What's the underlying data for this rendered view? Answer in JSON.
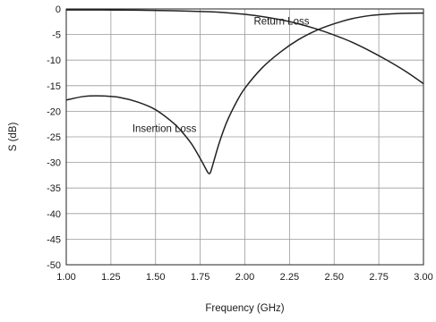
{
  "chart_data": {
    "type": "line",
    "title": "",
    "xlabel": "Frequency (GHz)",
    "ylabel": "S (dB)",
    "xlim": [
      1.0,
      3.0
    ],
    "ylim": [
      -50,
      0
    ],
    "x_ticks": [
      "1.00",
      "1.25",
      "1.50",
      "1.75",
      "2.00",
      "2.25",
      "2.50",
      "2.75",
      "3.00"
    ],
    "y_ticks": [
      "0",
      "-5",
      "-10",
      "-15",
      "-20",
      "-25",
      "-30",
      "-35",
      "-40",
      "-45",
      "-50"
    ],
    "grid": true,
    "legend": "none",
    "colors": {
      "line": "#222222",
      "grid": "#9a9a9a",
      "frame": "#222222"
    },
    "series": [
      {
        "annotation": "Insertion Loss",
        "x": [
          1.0,
          1.1,
          1.2,
          1.3,
          1.4,
          1.5,
          1.6,
          1.65,
          1.7,
          1.74,
          1.77,
          1.79,
          1.8,
          1.81,
          1.83,
          1.86,
          1.9,
          1.95,
          2.0,
          2.1,
          2.2,
          2.3,
          2.4,
          2.5,
          2.6,
          2.7,
          2.8,
          2.9,
          3.0
        ],
        "values": [
          -17.8,
          -17.1,
          -17.0,
          -17.3,
          -18.2,
          -19.7,
          -22.3,
          -24.1,
          -26.3,
          -28.6,
          -30.5,
          -31.8,
          -32.2,
          -31.7,
          -29.3,
          -25.8,
          -22.0,
          -18.4,
          -15.5,
          -11.4,
          -8.4,
          -6.0,
          -4.2,
          -2.9,
          -1.9,
          -1.3,
          -1.0,
          -0.85,
          -0.8
        ]
      },
      {
        "annotation": "Return Loss",
        "x": [
          1.0,
          1.2,
          1.4,
          1.6,
          1.8,
          1.9,
          2.0,
          2.1,
          2.2,
          2.3,
          2.4,
          2.5,
          2.6,
          2.7,
          2.8,
          2.9,
          3.0
        ],
        "values": [
          -0.2,
          -0.2,
          -0.25,
          -0.35,
          -0.55,
          -0.75,
          -1.05,
          -1.5,
          -2.1,
          -2.9,
          -3.9,
          -5.1,
          -6.5,
          -8.2,
          -10.1,
          -12.2,
          -14.6
        ]
      }
    ],
    "annotations": [
      {
        "text": "Return Loss",
        "x": 2.05,
        "y": -2.4
      },
      {
        "text": "Insertion Loss",
        "x": 1.37,
        "y": -23.3
      }
    ]
  }
}
